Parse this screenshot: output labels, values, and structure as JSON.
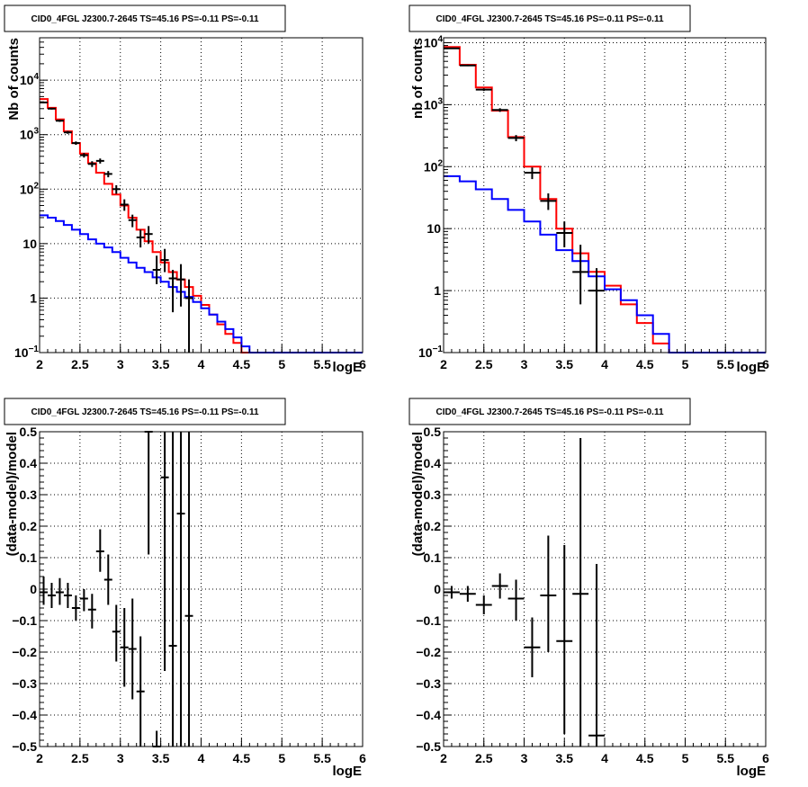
{
  "chart_data": [
    {
      "id": "spectrum-left",
      "type": "histogram",
      "title": "CID0_4FGL J2300.7-2645 TS=45.16 PS=-0.11 PS=-0.11",
      "xlabel": "logE",
      "ylabel": "Nb of counts",
      "xlim": [
        2,
        6
      ],
      "ylim": [
        0.1,
        60000
      ],
      "ylog": true,
      "grid": true,
      "xticks": [
        "2",
        "2.5",
        "3",
        "3.5",
        "4",
        "4.5",
        "5",
        "5.5",
        "6"
      ],
      "yticks": [
        {
          "v": 0.1,
          "b": "10",
          "e": "−1"
        },
        {
          "v": 1,
          "b": "1",
          "e": ""
        },
        {
          "v": 10,
          "b": "10",
          "e": ""
        },
        {
          "v": 100,
          "b": "10",
          "e": "2"
        },
        {
          "v": 1000,
          "b": "10",
          "e": "3"
        },
        {
          "v": 10000,
          "b": "10",
          "e": "4"
        }
      ],
      "series": [
        {
          "color": "#ff0000",
          "step": true,
          "edges": [
            2.0,
            2.1,
            2.2,
            2.3,
            2.4,
            2.5,
            2.6,
            2.7,
            2.8,
            2.9,
            3.0,
            3.1,
            3.2,
            3.3,
            3.4,
            3.5,
            3.6,
            3.7,
            3.8,
            3.9,
            4.0,
            4.1,
            4.2,
            4.3,
            4.4,
            4.5,
            4.6,
            4.7,
            4.8,
            4.9,
            5.0,
            5.1,
            5.2,
            5.3,
            5.4,
            5.5,
            5.6,
            5.7,
            5.8,
            5.9,
            6.0
          ],
          "values": [
            4500,
            3100,
            1900,
            1150,
            700,
            450,
            300,
            200,
            125,
            80,
            50,
            30,
            18,
            11,
            7,
            4.5,
            3,
            2.2,
            1.6,
            1.1,
            0.75,
            0.5,
            0.33,
            0.22,
            0.15,
            0.1,
            0.1,
            0.1,
            0.1,
            0.1,
            0.1,
            0.1,
            0.1,
            0.1,
            0.1,
            0.1,
            0.1,
            0.1,
            0.1,
            0.1
          ]
        },
        {
          "color": "#0000ff",
          "step": true,
          "edges": [
            2.0,
            2.1,
            2.2,
            2.3,
            2.4,
            2.5,
            2.6,
            2.7,
            2.8,
            2.9,
            3.0,
            3.1,
            3.2,
            3.3,
            3.4,
            3.5,
            3.6,
            3.7,
            3.8,
            3.9,
            4.0,
            4.1,
            4.2,
            4.3,
            4.4,
            4.5,
            4.6,
            4.7,
            4.8,
            4.9,
            5.0,
            5.1,
            5.2,
            5.3,
            5.4,
            5.5,
            5.6,
            5.7,
            5.8,
            5.9,
            6.0
          ],
          "values": [
            33,
            30,
            26,
            22,
            18,
            15,
            12,
            10,
            8.5,
            7,
            5.5,
            4.5,
            3.6,
            3,
            2.4,
            2,
            1.6,
            1.3,
            1.05,
            0.85,
            0.65,
            0.5,
            0.37,
            0.27,
            0.19,
            0.13,
            0.1,
            0.1,
            0.1,
            0.1,
            0.1,
            0.1,
            0.1,
            0.1,
            0.1,
            0.1,
            0.1,
            0.1,
            0.1,
            0.1
          ]
        }
      ],
      "points": {
        "color": "#000000",
        "xerr": 0.05,
        "data": [
          {
            "x": 2.05,
            "y": 3900,
            "lo": 3780,
            "hi": 4020
          },
          {
            "x": 2.15,
            "y": 3000,
            "lo": 2890,
            "hi": 3110
          },
          {
            "x": 2.25,
            "y": 1800,
            "lo": 1715,
            "hi": 1885
          },
          {
            "x": 2.35,
            "y": 1100,
            "lo": 1035,
            "hi": 1165
          },
          {
            "x": 2.45,
            "y": 700,
            "lo": 650,
            "hi": 750
          },
          {
            "x": 2.55,
            "y": 420,
            "lo": 380,
            "hi": 460
          },
          {
            "x": 2.65,
            "y": 290,
            "lo": 255,
            "hi": 325
          },
          {
            "x": 2.75,
            "y": 330,
            "lo": 295,
            "hi": 365
          },
          {
            "x": 2.85,
            "y": 190,
            "lo": 165,
            "hi": 215
          },
          {
            "x": 2.95,
            "y": 100,
            "lo": 82,
            "hi": 118
          },
          {
            "x": 3.05,
            "y": 52,
            "lo": 40,
            "hi": 65
          },
          {
            "x": 3.15,
            "y": 27,
            "lo": 20,
            "hi": 34
          },
          {
            "x": 3.25,
            "y": 13,
            "lo": 8.5,
            "hi": 18
          },
          {
            "x": 3.35,
            "y": 15,
            "lo": 10,
            "hi": 21
          },
          {
            "x": 3.45,
            "y": 3.3,
            "lo": 1.8,
            "hi": 6
          },
          {
            "x": 3.55,
            "y": 5,
            "lo": 3,
            "hi": 8
          },
          {
            "x": 3.65,
            "y": 2.3,
            "lo": 0.55,
            "hi": 3.3
          },
          {
            "x": 3.75,
            "y": 2.2,
            "lo": 0.7,
            "hi": 4.2
          },
          {
            "x": 3.85,
            "y": 1,
            "lo": 0.1,
            "hi": 2.2
          }
        ]
      }
    },
    {
      "id": "spectrum-right",
      "type": "histogram",
      "title": "CID0_4FGL J2300.7-2645 TS=45.16 PS=-0.11 PS=-0.11",
      "xlabel": "logE",
      "ylabel": "nb of counts",
      "xlim": [
        2,
        6
      ],
      "ylim": [
        0.1,
        12000
      ],
      "ylog": true,
      "grid": true,
      "xticks": [
        "2",
        "2.5",
        "3",
        "3.5",
        "4",
        "4.5",
        "5",
        "5.5",
        "6"
      ],
      "yticks": [
        {
          "v": 0.1,
          "b": "10",
          "e": "−1"
        },
        {
          "v": 1,
          "b": "1",
          "e": ""
        },
        {
          "v": 10,
          "b": "10",
          "e": ""
        },
        {
          "v": 100,
          "b": "10",
          "e": "2"
        },
        {
          "v": 1000,
          "b": "10",
          "e": "3"
        },
        {
          "v": 10000,
          "b": "10",
          "e": "4"
        }
      ],
      "series": [
        {
          "color": "#ff0000",
          "step": true,
          "edges": [
            2.0,
            2.2,
            2.4,
            2.6,
            2.8,
            3.0,
            3.2,
            3.4,
            3.6,
            3.8,
            4.0,
            4.2,
            4.4,
            4.6,
            4.8,
            5.0,
            5.2,
            5.4,
            5.6,
            5.8,
            6.0
          ],
          "values": [
            8500,
            4400,
            1900,
            800,
            300,
            100,
            30,
            10,
            4,
            2,
            1.2,
            0.6,
            0.3,
            0.14,
            0.1,
            0.1,
            0.1,
            0.1,
            0.1,
            0.1
          ]
        },
        {
          "color": "#0000ff",
          "step": true,
          "edges": [
            2.0,
            2.2,
            2.4,
            2.6,
            2.8,
            3.0,
            3.2,
            3.4,
            3.6,
            3.8,
            4.0,
            4.2,
            4.4,
            4.6,
            4.8,
            5.0,
            5.2,
            5.4,
            5.6,
            5.8,
            6.0
          ],
          "values": [
            70,
            58,
            43,
            30,
            20,
            13,
            8,
            4.5,
            3,
            1.7,
            1.05,
            0.7,
            0.4,
            0.2,
            0.1,
            0.1,
            0.1,
            0.1,
            0.1,
            0.1
          ]
        }
      ],
      "points": {
        "color": "#000000",
        "xerr": 0.1,
        "data": [
          {
            "x": 2.1,
            "y": 8100,
            "lo": 7950,
            "hi": 8250
          },
          {
            "x": 2.3,
            "y": 4300,
            "lo": 4180,
            "hi": 4420
          },
          {
            "x": 2.5,
            "y": 1750,
            "lo": 1670,
            "hi": 1830
          },
          {
            "x": 2.7,
            "y": 820,
            "lo": 765,
            "hi": 875
          },
          {
            "x": 2.9,
            "y": 290,
            "lo": 257,
            "hi": 323
          },
          {
            "x": 3.1,
            "y": 80,
            "lo": 63,
            "hi": 97
          },
          {
            "x": 3.3,
            "y": 28,
            "lo": 20,
            "hi": 37
          },
          {
            "x": 3.5,
            "y": 8.5,
            "lo": 5,
            "hi": 13
          },
          {
            "x": 3.7,
            "y": 2,
            "lo": 0.6,
            "hi": 5.5
          },
          {
            "x": 3.9,
            "y": 1,
            "lo": 0.1,
            "hi": 2.3
          }
        ]
      }
    },
    {
      "id": "residual-left",
      "type": "scatter",
      "title": "CID0_4FGL J2300.7-2645 TS=45.16 PS=-0.11 PS=-0.11",
      "xlabel": "logE",
      "ylabel": "(data-model)/model",
      "xlim": [
        2,
        6
      ],
      "ylim": [
        -0.5,
        0.5
      ],
      "ylog": false,
      "grid": true,
      "xticks": [
        "2",
        "2.5",
        "3",
        "3.5",
        "4",
        "4.5",
        "5",
        "5.5",
        "6"
      ],
      "yticks": [
        {
          "v": -0.5,
          "b": "−0.5",
          "e": ""
        },
        {
          "v": -0.4,
          "b": "−0.4",
          "e": ""
        },
        {
          "v": -0.3,
          "b": "−0.3",
          "e": ""
        },
        {
          "v": -0.2,
          "b": "−0.2",
          "e": ""
        },
        {
          "v": -0.1,
          "b": "−0.1",
          "e": ""
        },
        {
          "v": 0,
          "b": "0",
          "e": ""
        },
        {
          "v": 0.1,
          "b": "0.1",
          "e": ""
        },
        {
          "v": 0.2,
          "b": "0.2",
          "e": ""
        },
        {
          "v": 0.3,
          "b": "0.3",
          "e": ""
        },
        {
          "v": 0.4,
          "b": "0.4",
          "e": ""
        },
        {
          "v": 0.5,
          "b": "0.5",
          "e": ""
        }
      ],
      "series": [],
      "points": {
        "color": "#000000",
        "xerr": 0.05,
        "data": [
          {
            "x": 2.05,
            "y": -0.01,
            "lo": -0.05,
            "hi": 0.04
          },
          {
            "x": 2.15,
            "y": -0.02,
            "lo": -0.06,
            "hi": 0.02
          },
          {
            "x": 2.25,
            "y": -0.01,
            "lo": -0.05,
            "hi": 0.035
          },
          {
            "x": 2.35,
            "y": -0.02,
            "lo": -0.06,
            "hi": 0.02
          },
          {
            "x": 2.45,
            "y": -0.06,
            "lo": -0.1,
            "hi": -0.02
          },
          {
            "x": 2.55,
            "y": -0.03,
            "lo": -0.07,
            "hi": 0.0
          },
          {
            "x": 2.65,
            "y": -0.065,
            "lo": -0.125,
            "hi": -0.015
          },
          {
            "x": 2.75,
            "y": 0.12,
            "lo": 0.055,
            "hi": 0.19
          },
          {
            "x": 2.85,
            "y": 0.03,
            "lo": -0.05,
            "hi": 0.11
          },
          {
            "x": 2.95,
            "y": -0.135,
            "lo": -0.23,
            "hi": -0.05
          },
          {
            "x": 3.05,
            "y": -0.185,
            "lo": -0.31,
            "hi": -0.06
          },
          {
            "x": 3.15,
            "y": -0.19,
            "lo": -0.35,
            "hi": -0.03
          },
          {
            "x": 3.25,
            "y": -0.325,
            "lo": -0.5,
            "hi": -0.15
          },
          {
            "x": 3.35,
            "y": 0.5,
            "lo": 0.11,
            "hi": 0.5
          },
          {
            "x": 3.45,
            "y": -0.5,
            "lo": -0.5,
            "hi": -0.45
          },
          {
            "x": 3.55,
            "y": 0.355,
            "lo": -0.26,
            "hi": 0.5
          },
          {
            "x": 3.65,
            "y": -0.18,
            "lo": -0.5,
            "hi": 0.5
          },
          {
            "x": 3.75,
            "y": 0.24,
            "lo": -0.5,
            "hi": 0.5
          },
          {
            "x": 3.85,
            "y": -0.085,
            "lo": -0.5,
            "hi": 0.5
          }
        ]
      }
    },
    {
      "id": "residual-right",
      "type": "scatter",
      "title": "CID0_4FGL J2300.7-2645 TS=45.16 PS=-0.11 PS=-0.11",
      "xlabel": "logE",
      "ylabel": "(data-model)/model",
      "xlim": [
        2,
        6
      ],
      "ylim": [
        -0.5,
        0.5
      ],
      "ylog": false,
      "grid": true,
      "xticks": [
        "2",
        "2.5",
        "3",
        "3.5",
        "4",
        "4.5",
        "5",
        "5.5",
        "6"
      ],
      "yticks": [
        {
          "v": -0.5,
          "b": "−0.5",
          "e": ""
        },
        {
          "v": -0.4,
          "b": "−0.4",
          "e": ""
        },
        {
          "v": -0.3,
          "b": "−0.3",
          "e": ""
        },
        {
          "v": -0.2,
          "b": "−0.2",
          "e": ""
        },
        {
          "v": -0.1,
          "b": "−0.1",
          "e": ""
        },
        {
          "v": 0,
          "b": "0",
          "e": ""
        },
        {
          "v": 0.1,
          "b": "0.1",
          "e": ""
        },
        {
          "v": 0.2,
          "b": "0.2",
          "e": ""
        },
        {
          "v": 0.3,
          "b": "0.3",
          "e": ""
        },
        {
          "v": 0.4,
          "b": "0.4",
          "e": ""
        },
        {
          "v": 0.5,
          "b": "0.5",
          "e": ""
        }
      ],
      "series": [],
      "points": {
        "color": "#000000",
        "xerr": 0.1,
        "data": [
          {
            "x": 2.1,
            "y": -0.01,
            "lo": -0.03,
            "hi": 0.01
          },
          {
            "x": 2.3,
            "y": -0.015,
            "lo": -0.04,
            "hi": 0.01
          },
          {
            "x": 2.5,
            "y": -0.05,
            "lo": -0.08,
            "hi": -0.02
          },
          {
            "x": 2.7,
            "y": 0.01,
            "lo": -0.03,
            "hi": 0.05
          },
          {
            "x": 2.9,
            "y": -0.03,
            "lo": -0.1,
            "hi": 0.03
          },
          {
            "x": 3.1,
            "y": -0.185,
            "lo": -0.28,
            "hi": -0.09
          },
          {
            "x": 3.3,
            "y": -0.02,
            "lo": -0.2,
            "hi": 0.17
          },
          {
            "x": 3.5,
            "y": -0.165,
            "lo": -0.46,
            "hi": 0.14
          },
          {
            "x": 3.7,
            "y": -0.015,
            "lo": -0.5,
            "hi": 0.48
          },
          {
            "x": 3.9,
            "y": -0.465,
            "lo": -0.5,
            "hi": 0.08
          }
        ]
      }
    }
  ]
}
